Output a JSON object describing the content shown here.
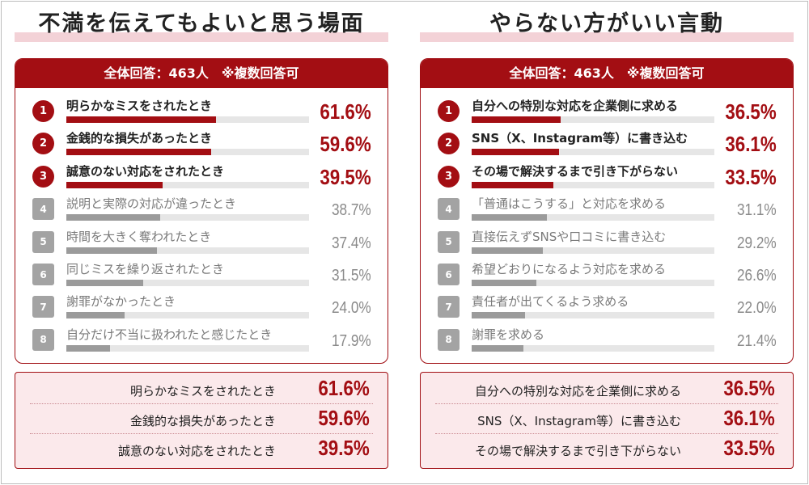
{
  "colors": {
    "accent": "#a30e13",
    "gray": "#9b9b9b",
    "track": "#e6e6e6",
    "summary_bg": "#fbe9eb"
  },
  "chart_data": [
    {
      "type": "bar",
      "title": "不満を伝えてもよいと思う場面",
      "subtitle": "全体回答：463人　※複数回答可",
      "xlim": [
        0,
        100
      ],
      "items": [
        {
          "rank": "1",
          "label": "明らかなミスをされたとき",
          "value": 61.6,
          "display": "61.6%"
        },
        {
          "rank": "2",
          "label": "金銭的な損失があったとき",
          "value": 59.6,
          "display": "59.6%"
        },
        {
          "rank": "3",
          "label": "誠意のない対応をされたとき",
          "value": 39.5,
          "display": "39.5%"
        },
        {
          "rank": "4",
          "label": "説明と実際の対応が違ったとき",
          "value": 38.7,
          "display": "38.7%"
        },
        {
          "rank": "5",
          "label": "時間を大きく奪われたとき",
          "value": 37.4,
          "display": "37.4%"
        },
        {
          "rank": "6",
          "label": "同じミスを繰り返されたとき",
          "value": 31.5,
          "display": "31.5%"
        },
        {
          "rank": "7",
          "label": "謝罪がなかったとき",
          "value": 24.0,
          "display": "24.0%"
        },
        {
          "rank": "8",
          "label": "自分だけ不当に扱われたと感じたとき",
          "value": 17.9,
          "display": "17.9%"
        }
      ],
      "summary": [
        {
          "label": "明らかなミスをされたとき",
          "display": "61.6%"
        },
        {
          "label": "金銭的な損失があったとき",
          "display": "59.6%"
        },
        {
          "label": "誠意のない対応をされたとき",
          "display": "39.5%"
        }
      ]
    },
    {
      "type": "bar",
      "title": "やらない方がいい言動",
      "subtitle": "全体回答：463人　※複数回答可",
      "xlim": [
        0,
        100
      ],
      "items": [
        {
          "rank": "1",
          "label": "自分への特別な対応を企業側に求める",
          "value": 36.5,
          "display": "36.5%"
        },
        {
          "rank": "2",
          "label": "SNS（X、Instagram等）に書き込む",
          "value": 36.1,
          "display": "36.1%"
        },
        {
          "rank": "3",
          "label": "その場で解決するまで引き下がらない",
          "value": 33.5,
          "display": "33.5%"
        },
        {
          "rank": "4",
          "label": "「普通はこうする」と対応を求める",
          "value": 31.1,
          "display": "31.1%"
        },
        {
          "rank": "5",
          "label": "直接伝えずSNSや口コミに書き込む",
          "value": 29.2,
          "display": "29.2%"
        },
        {
          "rank": "6",
          "label": "希望どおりになるよう対応を求める",
          "value": 26.6,
          "display": "26.6%"
        },
        {
          "rank": "7",
          "label": "責任者が出てくるよう求める",
          "value": 22.0,
          "display": "22.0%"
        },
        {
          "rank": "8",
          "label": "謝罪を求める",
          "value": 21.4,
          "display": "21.4%"
        }
      ],
      "summary": [
        {
          "label": "自分への特別な対応を企業側に求める",
          "display": "36.5%"
        },
        {
          "label": "SNS（X、Instagram等）に書き込む",
          "display": "36.1%"
        },
        {
          "label": "その場で解決するまで引き下がらない",
          "display": "33.5%"
        }
      ]
    }
  ]
}
